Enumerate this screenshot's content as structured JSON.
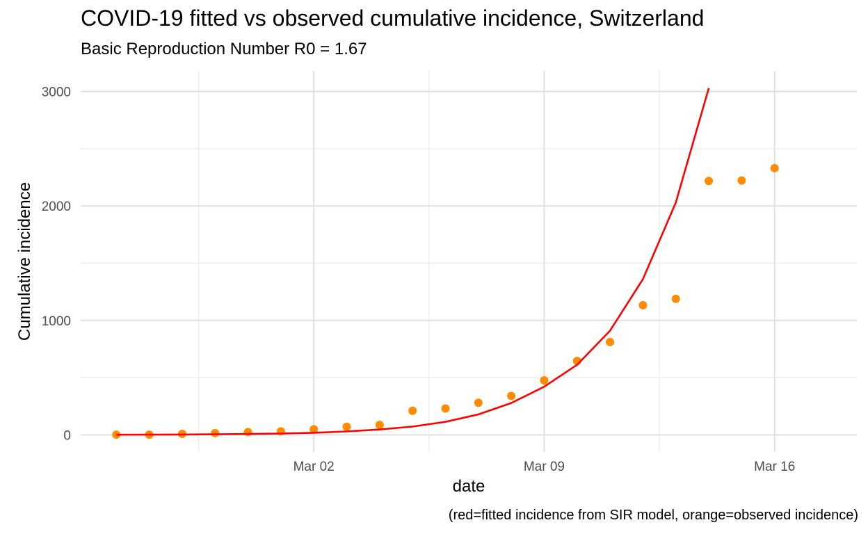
{
  "chart_data": {
    "type": "line",
    "title": "COVID-19 fitted vs observed cumulative incidence, Switzerland",
    "subtitle": "Basic Reproduction Number R0 = 1.67",
    "xlabel": "date",
    "ylabel": "Cumulative incidence",
    "caption": "(red=fitted incidence from SIR model, orange=observed incidence)",
    "x_dates": [
      "2020-02-25",
      "2020-02-26",
      "2020-02-27",
      "2020-02-28",
      "2020-02-29",
      "2020-03-01",
      "2020-03-02",
      "2020-03-03",
      "2020-03-04",
      "2020-03-05",
      "2020-03-06",
      "2020-03-07",
      "2020-03-08",
      "2020-03-09",
      "2020-03-10",
      "2020-03-11",
      "2020-03-12",
      "2020-03-13",
      "2020-03-14",
      "2020-03-15",
      "2020-03-16",
      "2020-03-17"
    ],
    "x_ticks": [
      {
        "date": "2020-03-02",
        "label": "Mar 02"
      },
      {
        "date": "2020-03-09",
        "label": "Mar 09"
      },
      {
        "date": "2020-03-16",
        "label": "Mar 16"
      }
    ],
    "xlim": [
      "2020-02-23T22:00",
      "2020-03-18T12:00"
    ],
    "y_ticks": [
      {
        "value": 0,
        "label": "0"
      },
      {
        "value": 1000,
        "label": "1000"
      },
      {
        "value": 2000,
        "label": "2000"
      },
      {
        "value": 3000,
        "label": "3000"
      }
    ],
    "ylim": [
      -150,
      3180
    ],
    "grid": true,
    "series": [
      {
        "style": "points",
        "color": "#FF8C00",
        "values": [
          1,
          1,
          8,
          15,
          24,
          30,
          48,
          70,
          86,
          210,
          230,
          280,
          340,
          476,
          645,
          811,
          1133,
          1188,
          2218,
          2222,
          2330
        ]
      },
      {
        "style": "line",
        "color": "#FF0000",
        "values": [
          1,
          1.6,
          2.6,
          4.2,
          6.8,
          11,
          18,
          29,
          46,
          72,
          113,
          178,
          278,
          420,
          612,
          910,
          1360,
          2030,
          3030
        ]
      }
    ]
  }
}
